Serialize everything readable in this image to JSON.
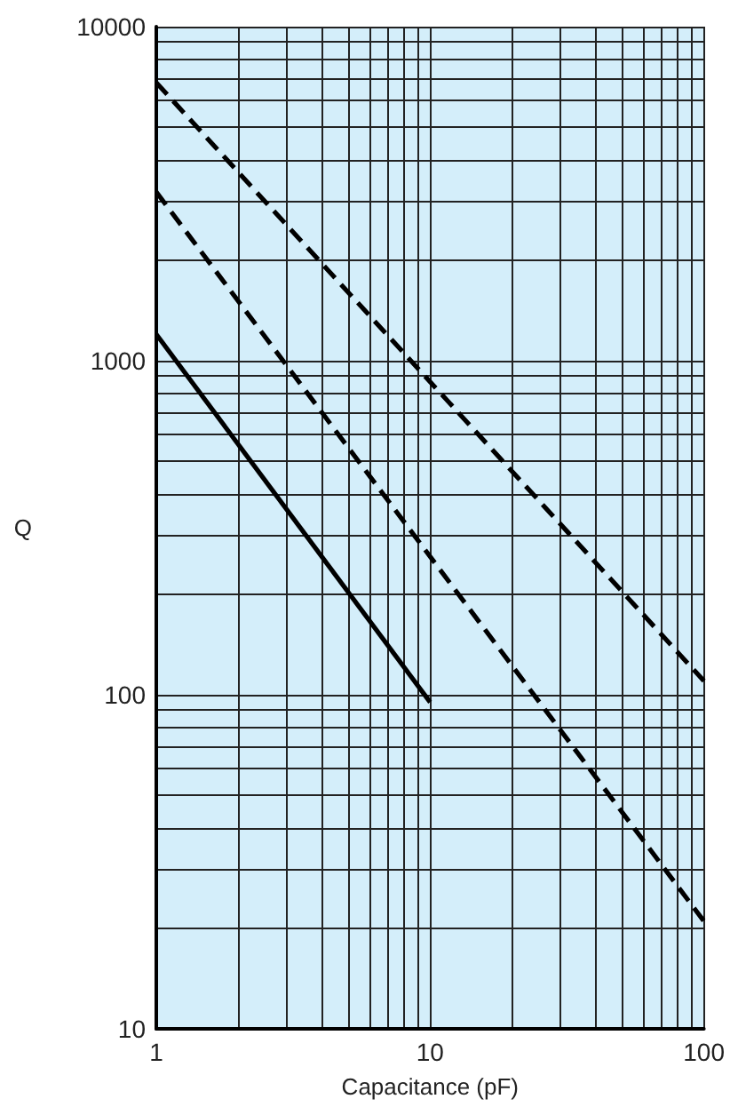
{
  "chart_data": {
    "type": "line",
    "xlabel": "Capacitance (pF)",
    "ylabel": "Q",
    "log": "xy",
    "grid": true,
    "marker": "none",
    "xlim": [
      1,
      100
    ],
    "ylim": [
      10,
      10000
    ],
    "xticks": [
      1,
      {
        "value": 2,
        "label": null
      },
      {
        "value": 3,
        "label": null
      },
      {
        "value": 4,
        "label": null
      },
      {
        "value": 5,
        "label": null
      },
      {
        "value": 6,
        "label": null
      },
      {
        "value": 7,
        "label": null
      },
      {
        "value": 8,
        "label": null
      },
      {
        "value": 9,
        "label": null
      },
      10,
      {
        "value": 20,
        "label": null
      },
      {
        "value": 30,
        "label": null
      },
      {
        "value": 40,
        "label": null
      },
      {
        "value": 50,
        "label": null
      },
      {
        "value": 60,
        "label": null
      },
      {
        "value": 70,
        "label": null
      },
      {
        "value": 80,
        "label": null
      },
      {
        "value": 90,
        "label": null
      },
      100
    ],
    "yticks": [
      10,
      {
        "value": 20,
        "label": null
      },
      {
        "value": 30,
        "label": null
      },
      {
        "value": 40,
        "label": null
      },
      {
        "value": 50,
        "label": null
      },
      {
        "value": 60,
        "label": null
      },
      {
        "value": 70,
        "label": null
      },
      {
        "value": 80,
        "label": null
      },
      {
        "value": 90,
        "label": null
      },
      100,
      {
        "value": 200,
        "label": null
      },
      {
        "value": 300,
        "label": null
      },
      {
        "value": 400,
        "label": null
      },
      {
        "value": 500,
        "label": null
      },
      {
        "value": 600,
        "label": null
      },
      {
        "value": 700,
        "label": null
      },
      {
        "value": 800,
        "label": null
      },
      {
        "value": 900,
        "label": null
      },
      1000,
      {
        "value": 2000,
        "label": null
      },
      {
        "value": 3000,
        "label": null
      },
      {
        "value": 4000,
        "label": null
      },
      {
        "value": 5000,
        "label": null
      },
      {
        "value": 6000,
        "label": null
      },
      {
        "value": 7000,
        "label": null
      },
      {
        "value": 8000,
        "label": null
      },
      {
        "value": 9000,
        "label": null
      },
      10000
    ],
    "series": [
      {
        "color": "#000000",
        "line_style": "solid",
        "x": [
          1,
          10
        ],
        "values": [
          1200,
          95
        ]
      },
      {
        "color": "#000000",
        "line_style": "dashed",
        "x": [
          1,
          100
        ],
        "values": [
          3200,
          21
        ]
      },
      {
        "color": "#000000",
        "line_style": "dashed",
        "x": [
          1,
          100
        ],
        "values": [
          6800,
          110
        ]
      }
    ]
  }
}
